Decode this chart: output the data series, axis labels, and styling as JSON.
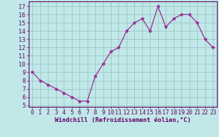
{
  "x": [
    0,
    1,
    2,
    3,
    4,
    5,
    6,
    7,
    8,
    9,
    10,
    11,
    12,
    13,
    14,
    15,
    16,
    17,
    18,
    19,
    20,
    21,
    22,
    23
  ],
  "y": [
    9,
    8,
    7.5,
    7,
    6.5,
    6,
    5.5,
    5.5,
    8.5,
    10,
    11.5,
    12,
    14,
    15,
    15.5,
    14,
    17,
    14.5,
    15.5,
    16,
    16,
    15,
    13,
    12
  ],
  "line_color": "#993399",
  "marker": "*",
  "marker_size": 3,
  "background_color": "#c0e8e8",
  "grid_color": "#a0c8c8",
  "xlabel": "Windchill (Refroidissement éolien,°C)",
  "xlabel_fontsize": 6.5,
  "yticks": [
    5,
    6,
    7,
    8,
    9,
    10,
    11,
    12,
    13,
    14,
    15,
    16,
    17
  ],
  "xticks": [
    0,
    1,
    2,
    3,
    4,
    5,
    6,
    7,
    8,
    9,
    10,
    11,
    12,
    13,
    14,
    15,
    16,
    17,
    18,
    19,
    20,
    21,
    22,
    23
  ],
  "ylim": [
    4.8,
    17.6
  ],
  "xlim": [
    -0.5,
    23.5
  ],
  "tick_fontsize": 6,
  "line_width": 1.0,
  "line_color_hex": "#993399",
  "tick_color": "#660066",
  "spine_color": "#660066"
}
